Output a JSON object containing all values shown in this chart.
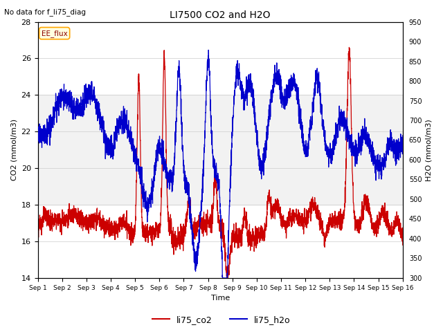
{
  "title": "LI7500 CO2 and H2O",
  "subtitle": "No data for f_li75_diag",
  "xlabel": "Time",
  "ylabel_left": "CO2 (mmol/m3)",
  "ylabel_right": "H2O (mmol/m3)",
  "ylim_left": [
    14,
    28
  ],
  "ylim_right": [
    300,
    950
  ],
  "yticks_left": [
    14,
    16,
    18,
    20,
    22,
    24,
    26,
    28
  ],
  "yticks_right": [
    300,
    350,
    400,
    450,
    500,
    550,
    600,
    650,
    700,
    750,
    800,
    850,
    900,
    950
  ],
  "xtick_labels": [
    "Sep 1",
    "Sep 2",
    "Sep 3",
    "Sep 4",
    "Sep 5",
    "Sep 6",
    "Sep 7",
    "Sep 8",
    "Sep 9",
    "Sep 10",
    "Sep 11",
    "Sep 12",
    "Sep 13",
    "Sep 14",
    "Sep 15",
    "Sep 16"
  ],
  "color_co2": "#CC0000",
  "color_h2o": "#0000CC",
  "legend_label_co2": "li75_co2",
  "legend_label_h2o": "li75_h2o",
  "band_color": "#DCDCDC",
  "background_color": "#FFFFFF"
}
